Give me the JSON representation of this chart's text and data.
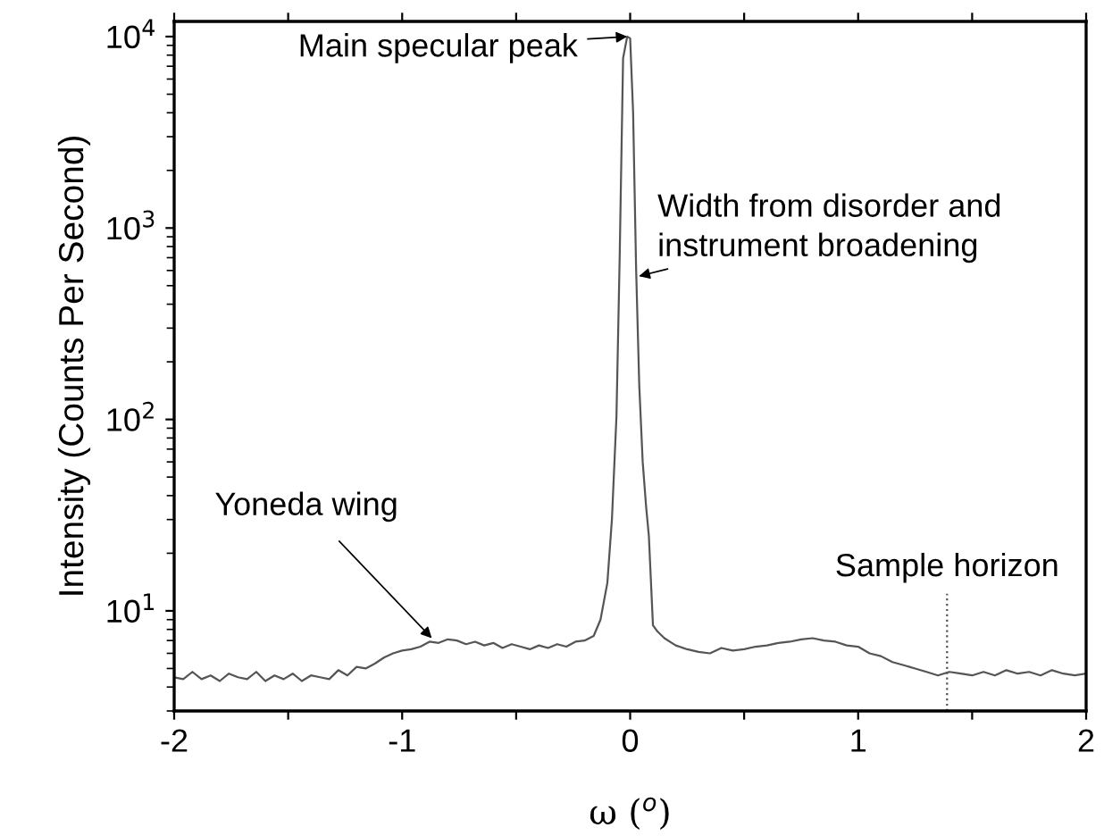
{
  "chart_data": {
    "type": "line",
    "xlabel": "ω ($^{o}$)",
    "ylabel": "Intensity (Counts Per Second)",
    "log": "y",
    "grid": false,
    "legend": false,
    "marker": "none",
    "line_style": "solid",
    "xlim": [
      -2,
      2
    ],
    "ylim": [
      3,
      12000
    ],
    "xticks": [
      -2,
      {
        "value": -1.5,
        "label": null
      },
      -1,
      {
        "value": -0.5,
        "label": null
      },
      0,
      {
        "value": 0.5,
        "label": null
      },
      1,
      {
        "value": 1.5,
        "label": null
      },
      2
    ],
    "yticks": [
      {
        "value": 10,
        "label": "10$^{1}$"
      },
      {
        "value": 100,
        "label": "10$^{2}$"
      },
      {
        "value": 1000,
        "label": "10$^{3}$"
      },
      {
        "value": 10000,
        "label": "10$^{4}$"
      }
    ],
    "series": [
      {
        "color": "#555555",
        "x": [
          -2.0,
          -1.96,
          -1.92,
          -1.88,
          -1.84,
          -1.8,
          -1.76,
          -1.72,
          -1.68,
          -1.64,
          -1.6,
          -1.56,
          -1.52,
          -1.48,
          -1.44,
          -1.4,
          -1.36,
          -1.32,
          -1.28,
          -1.24,
          -1.2,
          -1.16,
          -1.12,
          -1.08,
          -1.04,
          -1.0,
          -0.96,
          -0.92,
          -0.88,
          -0.84,
          -0.8,
          -0.76,
          -0.72,
          -0.68,
          -0.64,
          -0.6,
          -0.56,
          -0.52,
          -0.48,
          -0.44,
          -0.4,
          -0.36,
          -0.32,
          -0.28,
          -0.24,
          -0.2,
          -0.16,
          -0.13,
          -0.1,
          -0.08,
          -0.06,
          -0.046,
          -0.031,
          -0.013,
          0.0,
          0.013,
          0.026,
          0.04,
          0.055,
          0.07,
          0.082,
          0.1,
          0.12,
          0.15,
          0.2,
          0.25,
          0.3,
          0.35,
          0.4,
          0.45,
          0.5,
          0.55,
          0.6,
          0.65,
          0.7,
          0.75,
          0.8,
          0.85,
          0.9,
          0.95,
          1.0,
          1.05,
          1.1,
          1.15,
          1.2,
          1.25,
          1.3,
          1.35,
          1.4,
          1.45,
          1.5,
          1.55,
          1.6,
          1.65,
          1.7,
          1.75,
          1.8,
          1.85,
          1.9,
          1.95,
          2.0
        ],
        "values": [
          4.5,
          4.4,
          4.8,
          4.4,
          4.6,
          4.3,
          4.7,
          4.5,
          4.4,
          4.8,
          4.3,
          4.6,
          4.4,
          4.7,
          4.3,
          4.6,
          4.5,
          4.4,
          4.9,
          4.6,
          5.1,
          5.0,
          5.3,
          5.7,
          6.0,
          6.2,
          6.3,
          6.5,
          6.9,
          6.8,
          7.1,
          7.0,
          6.7,
          6.9,
          6.6,
          6.8,
          6.4,
          6.7,
          6.5,
          6.3,
          6.6,
          6.4,
          6.7,
          6.5,
          6.9,
          7.0,
          7.4,
          9.0,
          14,
          30,
          104,
          700,
          7700,
          10000,
          9800,
          4000,
          620,
          150,
          60,
          35,
          24.7,
          8.4,
          7.8,
          7.2,
          6.6,
          6.3,
          6.1,
          6.0,
          6.4,
          6.2,
          6.3,
          6.5,
          6.6,
          6.8,
          6.9,
          7.1,
          7.2,
          7.0,
          6.9,
          6.6,
          6.5,
          6.0,
          5.8,
          5.4,
          5.2,
          5.0,
          4.8,
          4.6,
          4.8,
          4.7,
          4.6,
          4.8,
          4.6,
          4.9,
          4.7,
          4.8,
          4.6,
          4.9,
          4.7,
          4.6,
          4.7
        ]
      }
    ],
    "ref_lines": [
      {
        "axis": "x",
        "value": 1.39,
        "label": "Sample horizon",
        "color": "#555555",
        "line_style": "dotted"
      }
    ],
    "annotations": [
      {
        "text": "Main specular peak",
        "x": -0.013,
        "y": 10000
      },
      {
        "text": "Width from disorder and\ninstrument broadening",
        "x": 0.038,
        "y": 560
      },
      {
        "text": "Yoneda wing",
        "x": -0.87,
        "y": 7.2
      }
    ]
  }
}
